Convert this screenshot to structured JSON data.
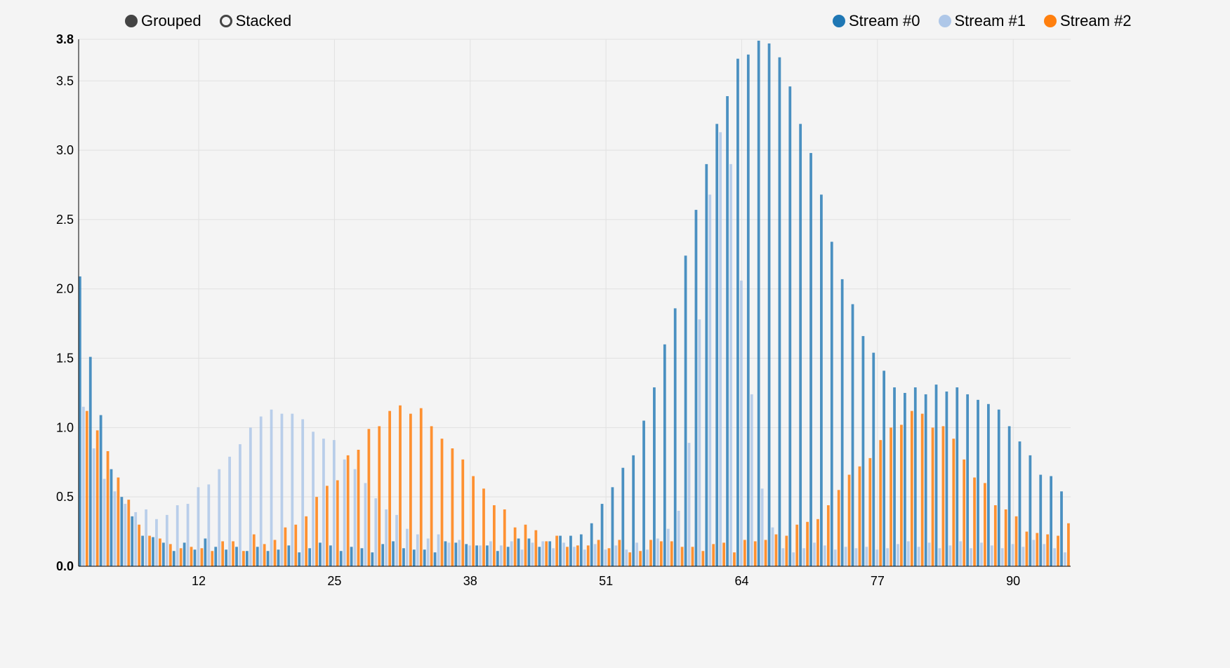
{
  "controls": [
    {
      "label": "Grouped",
      "selected": true
    },
    {
      "label": "Stacked",
      "selected": false
    }
  ],
  "chart_data": {
    "type": "bar",
    "mode": "grouped",
    "x": [
      1,
      2,
      3,
      4,
      5,
      6,
      7,
      8,
      9,
      10,
      11,
      12,
      13,
      14,
      15,
      16,
      17,
      18,
      19,
      20,
      21,
      22,
      23,
      24,
      25,
      26,
      27,
      28,
      29,
      30,
      31,
      32,
      33,
      34,
      35,
      36,
      37,
      38,
      39,
      40,
      41,
      42,
      43,
      44,
      45,
      46,
      47,
      48,
      49,
      50,
      51,
      52,
      53,
      54,
      55,
      56,
      57,
      58,
      59,
      60,
      61,
      62,
      63,
      64,
      65,
      66,
      67,
      68,
      69,
      70,
      71,
      72,
      73,
      74,
      75,
      76,
      77,
      78,
      79,
      80,
      81,
      82,
      83,
      84,
      85,
      86,
      87,
      88,
      89,
      90,
      91,
      92,
      93,
      94,
      95
    ],
    "x_tick_labels": [
      "12",
      "25",
      "38",
      "51",
      "64",
      "77",
      "90"
    ],
    "x_ticks": [
      12,
      25,
      38,
      51,
      64,
      77,
      90
    ],
    "y_tick_labels": [
      "0.0",
      "0.5",
      "1.0",
      "1.5",
      "2.0",
      "2.5",
      "3.0",
      "3.5",
      "3.8"
    ],
    "y_ticks": [
      0,
      0.5,
      1.0,
      1.5,
      2.0,
      2.5,
      3.0,
      3.5,
      3.8
    ],
    "ylim": [
      0,
      3.8
    ],
    "grid": true,
    "legend_position": "top-right",
    "series": [
      {
        "name": "Stream #0",
        "color": "#1f77b4",
        "values": [
          2.09,
          1.51,
          1.09,
          0.7,
          0.5,
          0.36,
          0.22,
          0.21,
          0.17,
          0.11,
          0.17,
          0.12,
          0.2,
          0.14,
          0.12,
          0.14,
          0.11,
          0.14,
          0.11,
          0.12,
          0.15,
          0.1,
          0.13,
          0.17,
          0.15,
          0.11,
          0.14,
          0.13,
          0.1,
          0.16,
          0.18,
          0.13,
          0.12,
          0.12,
          0.1,
          0.18,
          0.17,
          0.16,
          0.15,
          0.15,
          0.11,
          0.14,
          0.2,
          0.2,
          0.14,
          0.18,
          0.22,
          0.22,
          0.23,
          0.31,
          0.45,
          0.57,
          0.71,
          0.8,
          1.05,
          1.29,
          1.6,
          1.86,
          2.24,
          2.57,
          2.9,
          3.19,
          3.39,
          3.66,
          3.69,
          3.79,
          3.77,
          3.67,
          3.46,
          3.19,
          2.98,
          2.68,
          2.34,
          2.07,
          1.89,
          1.66,
          1.54,
          1.41,
          1.29,
          1.25,
          1.29,
          1.24,
          1.31,
          1.26,
          1.29,
          1.24,
          1.2,
          1.17,
          1.13,
          1.01,
          0.9,
          0.8,
          0.66,
          0.65,
          0.54
        ]
      },
      {
        "name": "Stream #1",
        "color": "#aec7e8",
        "values": [
          1.15,
          0.85,
          0.63,
          0.54,
          0.45,
          0.39,
          0.41,
          0.34,
          0.37,
          0.44,
          0.45,
          0.57,
          0.59,
          0.7,
          0.79,
          0.88,
          1.0,
          1.08,
          1.13,
          1.1,
          1.1,
          1.06,
          0.97,
          0.92,
          0.91,
          0.77,
          0.7,
          0.6,
          0.49,
          0.41,
          0.37,
          0.27,
          0.23,
          0.2,
          0.23,
          0.17,
          0.19,
          0.15,
          0.15,
          0.18,
          0.15,
          0.18,
          0.12,
          0.17,
          0.18,
          0.13,
          0.17,
          0.14,
          0.12,
          0.16,
          0.12,
          0.15,
          0.12,
          0.17,
          0.12,
          0.2,
          0.27,
          0.4,
          0.89,
          1.78,
          2.68,
          3.13,
          2.9,
          2.06,
          1.24,
          0.56,
          0.28,
          0.13,
          0.1,
          0.13,
          0.17,
          0.15,
          0.12,
          0.14,
          0.13,
          0.14,
          0.12,
          0.13,
          0.16,
          0.18,
          0.14,
          0.17,
          0.13,
          0.15,
          0.18,
          0.13,
          0.17,
          0.15,
          0.13,
          0.16,
          0.14,
          0.19,
          0.16,
          0.13,
          0.1
        ]
      },
      {
        "name": "Stream #2",
        "color": "#ff7f0e",
        "values": [
          1.12,
          0.98,
          0.83,
          0.64,
          0.48,
          0.3,
          0.22,
          0.2,
          0.16,
          0.13,
          0.14,
          0.13,
          0.11,
          0.18,
          0.18,
          0.11,
          0.23,
          0.16,
          0.19,
          0.28,
          0.3,
          0.36,
          0.5,
          0.58,
          0.62,
          0.8,
          0.84,
          0.99,
          1.01,
          1.12,
          1.16,
          1.1,
          1.14,
          1.01,
          0.92,
          0.85,
          0.77,
          0.65,
          0.56,
          0.44,
          0.41,
          0.28,
          0.3,
          0.26,
          0.18,
          0.22,
          0.14,
          0.15,
          0.15,
          0.19,
          0.13,
          0.19,
          0.1,
          0.11,
          0.19,
          0.18,
          0.18,
          0.14,
          0.14,
          0.11,
          0.16,
          0.17,
          0.1,
          0.19,
          0.18,
          0.19,
          0.23,
          0.22,
          0.3,
          0.32,
          0.34,
          0.44,
          0.55,
          0.66,
          0.72,
          0.78,
          0.91,
          1.0,
          1.02,
          1.12,
          1.1,
          1.0,
          1.01,
          0.92,
          0.77,
          0.64,
          0.6,
          0.44,
          0.41,
          0.36,
          0.25,
          0.24,
          0.23,
          0.22,
          0.31
        ]
      }
    ]
  }
}
